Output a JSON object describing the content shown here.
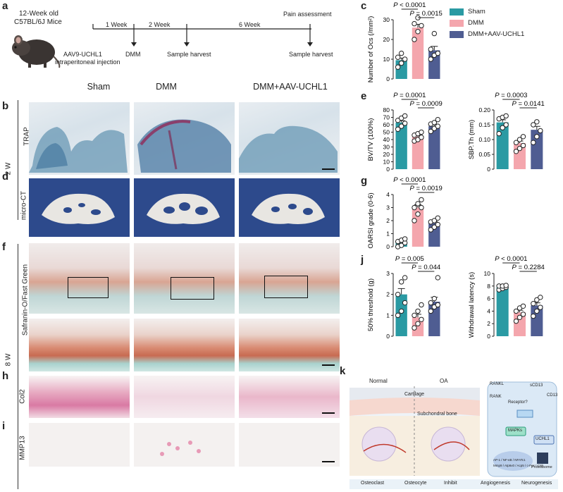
{
  "panels": {
    "a": "a",
    "b": "b",
    "c": "c",
    "d": "d",
    "e": "e",
    "f": "f",
    "g": "g",
    "h": "h",
    "i": "i",
    "j": "j",
    "k": "k"
  },
  "timeline": {
    "mouse_label_1": "12-Week old",
    "mouse_label_2": "C57BL/6J Mice",
    "week1": "1 Week",
    "week2": "2 Week",
    "week6": "6 Week",
    "pain": "Pain assessment",
    "inj_1": "AAV9-UCHL1",
    "inj_2": "intraperitoneal injection",
    "dmm": "DMM",
    "harvest1": "Sample harvest",
    "harvest2": "Sample harvest"
  },
  "columns": [
    "Sham",
    "DMM",
    "DMM+AAV-UCHL1"
  ],
  "row_labels": {
    "trap": "TRAP",
    "microct": "micro-CT",
    "w2": "2 W",
    "saf": "Safranin-O/Fast Green",
    "w8": "8 W",
    "col2": "Col2",
    "mmp13": "MMP13"
  },
  "legend": {
    "sham": "Sham",
    "dmm": "DMM",
    "aav": "DMM+AAV-UCHL1",
    "colors": {
      "sham": "#2a9aa3",
      "dmm": "#f4a6ad",
      "aav": "#4f5d92"
    }
  },
  "chart_data": [
    {
      "id": "c",
      "type": "bar",
      "categories": [
        "Sham",
        "DMM",
        "DMM+AAV-UCHL1"
      ],
      "values": [
        9.5,
        26,
        14.5
      ],
      "ylabel": "Number of Ocs (/mm²)",
      "ylim": [
        0,
        30
      ],
      "yticks": [
        0,
        10,
        20,
        30
      ],
      "points": [
        [
          6,
          8,
          10,
          11,
          13
        ],
        [
          20,
          24,
          27,
          28,
          31
        ],
        [
          10,
          12,
          13,
          15,
          23
        ]
      ],
      "annotations": [
        {
          "text": "P < 0.0001",
          "from": 0,
          "to": 1
        },
        {
          "text": "P = 0.0015",
          "from": 1,
          "to": 2
        }
      ]
    },
    {
      "id": "e1",
      "type": "bar",
      "categories": [
        "Sham",
        "DMM",
        "DMM+AAV-UCHL1"
      ],
      "values": [
        63,
        44,
        58
      ],
      "ylabel": "BV/TV (100%)",
      "ylim": [
        0,
        80
      ],
      "yticks": [
        0,
        10,
        20,
        30,
        40,
        50,
        60,
        70,
        80
      ],
      "points": [
        [
          54,
          58,
          62,
          66,
          69,
          72
        ],
        [
          38,
          40,
          43,
          46,
          48,
          50
        ],
        [
          51,
          55,
          58,
          61,
          63,
          67
        ]
      ],
      "annotations": [
        {
          "text": "P = 0.0001",
          "from": 0,
          "to": 1
        },
        {
          "text": "P = 0.0009",
          "from": 1,
          "to": 2
        }
      ]
    },
    {
      "id": "e2",
      "type": "bar",
      "categories": [
        "Sham",
        "DMM",
        "DMM+AAV-UCHL1"
      ],
      "values": [
        0.158,
        0.088,
        0.133
      ],
      "ylabel": "SBP.Th (mm)",
      "ylim": [
        0,
        0.2
      ],
      "yticks": [
        0,
        0.05,
        0.1,
        0.15,
        0.2
      ],
      "ytick_labels": [
        "0",
        "0.05",
        "0.10",
        "0.15",
        "0.20"
      ],
      "points": [
        [
          0.12,
          0.14,
          0.15,
          0.17,
          0.175,
          0.18
        ],
        [
          0.06,
          0.07,
          0.08,
          0.09,
          0.1,
          0.11
        ],
        [
          0.09,
          0.11,
          0.13,
          0.15,
          0.16
        ]
      ],
      "annotations": [
        {
          "text": "P = 0.0003",
          "from": 0,
          "to": 1
        },
        {
          "text": "P = 0.0141",
          "from": 1,
          "to": 2
        }
      ]
    },
    {
      "id": "g",
      "type": "bar",
      "categories": [
        "Sham",
        "DMM",
        "DMM+AAV-UCHL1"
      ],
      "values": [
        0.3,
        3.0,
        1.8
      ],
      "ylabel": "OARSI grade (0-6)",
      "ylim": [
        0,
        4
      ],
      "yticks": [
        0,
        1,
        2,
        3,
        4
      ],
      "points": [
        [
          0,
          0.1,
          0.3,
          0.4,
          0.5,
          0.6
        ],
        [
          2,
          2.5,
          3,
          3,
          3.3,
          3.6
        ],
        [
          1.3,
          1.5,
          1.7,
          1.9,
          2,
          2.2
        ]
      ],
      "annotations": [
        {
          "text": "P < 0.0001",
          "from": 0,
          "to": 1
        },
        {
          "text": "P = 0.0019",
          "from": 1,
          "to": 2
        }
      ]
    },
    {
      "id": "j1",
      "type": "bar",
      "categories": [
        "Sham",
        "DMM",
        "DMM+AAV-UCHL1"
      ],
      "values": [
        2.0,
        0.9,
        1.65
      ],
      "ylabel": "50% threshold (g)",
      "ylim": [
        0,
        3
      ],
      "yticks": [
        0,
        1,
        2,
        3
      ],
      "points": [
        [
          1,
          1.2,
          1.6,
          2,
          2.6,
          2.8
        ],
        [
          0.4,
          0.6,
          0.8,
          1,
          1.2,
          1.5
        ],
        [
          1.2,
          1.4,
          1.5,
          1.6,
          1.8,
          2.8
        ]
      ],
      "annotations": [
        {
          "text": "P = 0.005",
          "from": 0,
          "to": 1
        },
        {
          "text": "P = 0.044",
          "from": 1,
          "to": 2
        }
      ]
    },
    {
      "id": "j2",
      "type": "bar",
      "categories": [
        "Sham",
        "DMM",
        "DMM+AAV-UCHL1"
      ],
      "values": [
        7.8,
        3.8,
        4.9
      ],
      "ylabel": "Withdrawal latency (s)",
      "ylim": [
        0,
        10
      ],
      "yticks": [
        0,
        2,
        4,
        6,
        8,
        10
      ],
      "points": [
        [
          7.4,
          7.6,
          7.8,
          8,
          8,
          8.1
        ],
        [
          2.4,
          3,
          3.5,
          4,
          4.5,
          4.8
        ],
        [
          3.2,
          4,
          4.6,
          5.2,
          5.8,
          6.2
        ]
      ],
      "annotations": [
        {
          "text": "P < 0.0001",
          "from": 0,
          "to": 1
        },
        {
          "text": "P = 0.2284",
          "from": 1,
          "to": 2
        }
      ]
    }
  ],
  "schematic": {
    "normal": "Normal",
    "oa": "OA",
    "cartilage": "Cartilage",
    "subchondral": "Subchondral bone",
    "rankl": "RANKL",
    "rank": "RANK",
    "receptor": "Receptor?",
    "scd13": "sCD13",
    "cd13": "CD13",
    "mapks": "MAPKs",
    "uchl1": "UCHL1",
    "proteasome": "Proteasome",
    "genes_left": "AP-1 / NF-κB / NFATc1",
    "genes_right": "Mmp9 / Atp6v0 / Acp5 / c-Fos / Ctsk",
    "legend": [
      "Osteoclast",
      "Osteocyte",
      "Inhibit",
      "Angiogenesis",
      "Neurogenesis"
    ]
  },
  "scalebar_note": ""
}
